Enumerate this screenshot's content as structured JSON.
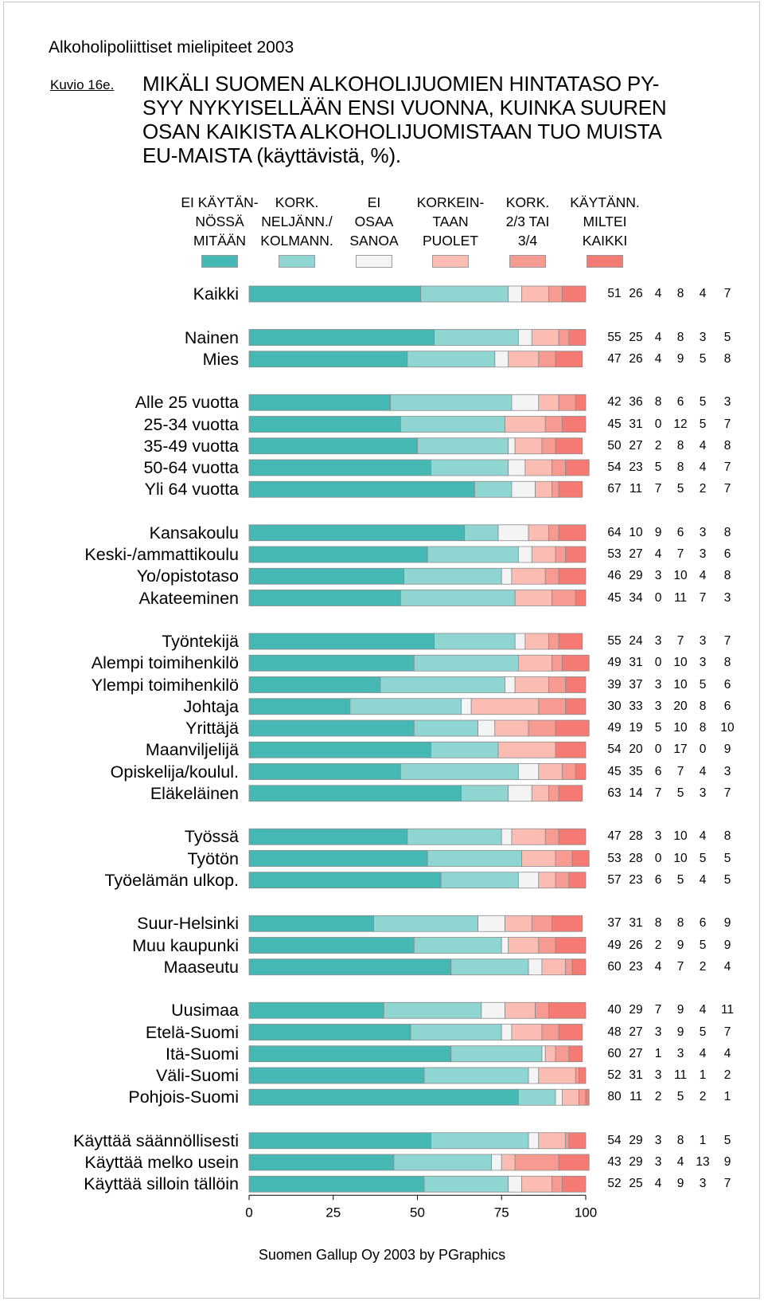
{
  "page": {
    "supertitle": "Alkoholipoliittiset mielipiteet 2003",
    "figure_label": "Kuvio 16e.",
    "title": "MIKÄLI SUOMEN ALKOHOLIJUOMIEN HINTATASO PY-\nSYY NYKYISELLÄÄN ENSI VUONNA, KUINKA SUUREN\nOSAN KAIKISTA ALKOHOLIJUOMISTAAN TUO MUISTA\nEU-MAISTA (käyttävistä, %).",
    "footer": "Suomen Gallup Oy 2003 by PGraphics"
  },
  "colors": {
    "seg": [
      "#45b8b4",
      "#8fd6d2",
      "#f4f4f4",
      "#fbbcb3",
      "#f79a92",
      "#f47a73"
    ],
    "bar_outline": "#8a8a8a"
  },
  "chart_data": {
    "type": "bar",
    "orientation": "horizontal",
    "stacked": true,
    "xlim": [
      0,
      100
    ],
    "x_ticks": [
      "0",
      "25",
      "50",
      "75",
      "100"
    ],
    "legend": [
      {
        "label": "EI KÄYTÄN-\nNÖSSÄ\nMITÄÄN"
      },
      {
        "label": "KORK.\nNELJÄNN./\nKOLMANN."
      },
      {
        "label": "EI\nOSAA\nSANOA"
      },
      {
        "label": "KORKEIN-\nTAAN\nPUOLET"
      },
      {
        "label": "KORK.\n2/3 TAI\n3/4"
      },
      {
        "label": "KÄYTÄNN.\nMILTEI\nKAIKKI"
      }
    ],
    "groups": [
      {
        "rows": [
          {
            "label": "Kaikki",
            "values": [
              51,
              26,
              4,
              8,
              4,
              7
            ]
          }
        ]
      },
      {
        "rows": [
          {
            "label": "Nainen",
            "values": [
              55,
              25,
              4,
              8,
              3,
              5
            ]
          },
          {
            "label": "Mies",
            "values": [
              47,
              26,
              4,
              9,
              5,
              8
            ]
          }
        ]
      },
      {
        "rows": [
          {
            "label": "Alle 25 vuotta",
            "values": [
              42,
              36,
              8,
              6,
              5,
              3
            ]
          },
          {
            "label": "25-34 vuotta",
            "values": [
              45,
              31,
              0,
              12,
              5,
              7
            ]
          },
          {
            "label": "35-49 vuotta",
            "values": [
              50,
              27,
              2,
              8,
              4,
              8
            ]
          },
          {
            "label": "50-64 vuotta",
            "values": [
              54,
              23,
              5,
              8,
              4,
              7
            ]
          },
          {
            "label": "Yli 64 vuotta",
            "values": [
              67,
              11,
              7,
              5,
              2,
              7
            ]
          }
        ]
      },
      {
        "rows": [
          {
            "label": "Kansakoulu",
            "values": [
              64,
              10,
              9,
              6,
              3,
              8
            ]
          },
          {
            "label": "Keski-/ammattikoulu",
            "values": [
              53,
              27,
              4,
              7,
              3,
              6
            ]
          },
          {
            "label": "Yo/opistotaso",
            "values": [
              46,
              29,
              3,
              10,
              4,
              8
            ]
          },
          {
            "label": "Akateeminen",
            "values": [
              45,
              34,
              0,
              11,
              7,
              3
            ]
          }
        ]
      },
      {
        "rows": [
          {
            "label": "Työntekijä",
            "values": [
              55,
              24,
              3,
              7,
              3,
              7
            ]
          },
          {
            "label": "Alempi toimihenkilö",
            "values": [
              49,
              31,
              0,
              10,
              3,
              8
            ]
          },
          {
            "label": "Ylempi toimihenkilö",
            "values": [
              39,
              37,
              3,
              10,
              5,
              6
            ]
          },
          {
            "label": "Johtaja",
            "values": [
              30,
              33,
              3,
              20,
              8,
              6
            ]
          },
          {
            "label": "Yrittäjä",
            "values": [
              49,
              19,
              5,
              10,
              8,
              10
            ]
          },
          {
            "label": "Maanviljelijä",
            "values": [
              54,
              20,
              0,
              17,
              0,
              9
            ]
          },
          {
            "label": "Opiskelija/koulul.",
            "values": [
              45,
              35,
              6,
              7,
              4,
              3
            ]
          },
          {
            "label": "Eläkeläinen",
            "values": [
              63,
              14,
              7,
              5,
              3,
              7
            ]
          }
        ]
      },
      {
        "rows": [
          {
            "label": "Työssä",
            "values": [
              47,
              28,
              3,
              10,
              4,
              8
            ]
          },
          {
            "label": "Työtön",
            "values": [
              53,
              28,
              0,
              10,
              5,
              5
            ]
          },
          {
            "label": "Työelämän ulkop.",
            "values": [
              57,
              23,
              6,
              5,
              4,
              5
            ]
          }
        ]
      },
      {
        "rows": [
          {
            "label": "Suur-Helsinki",
            "values": [
              37,
              31,
              8,
              8,
              6,
              9
            ]
          },
          {
            "label": "Muu kaupunki",
            "values": [
              49,
              26,
              2,
              9,
              5,
              9
            ]
          },
          {
            "label": "Maaseutu",
            "values": [
              60,
              23,
              4,
              7,
              2,
              4
            ]
          }
        ]
      },
      {
        "rows": [
          {
            "label": "Uusimaa",
            "values": [
              40,
              29,
              7,
              9,
              4,
              11
            ]
          },
          {
            "label": "Etelä-Suomi",
            "values": [
              48,
              27,
              3,
              9,
              5,
              7
            ]
          },
          {
            "label": "Itä-Suomi",
            "values": [
              60,
              27,
              1,
              3,
              4,
              4
            ]
          },
          {
            "label": "Väli-Suomi",
            "values": [
              52,
              31,
              3,
              11,
              1,
              2
            ]
          },
          {
            "label": "Pohjois-Suomi",
            "values": [
              80,
              11,
              2,
              5,
              2,
              1
            ]
          }
        ]
      },
      {
        "rows": [
          {
            "label": "Käyttää säännöllisesti",
            "values": [
              54,
              29,
              3,
              8,
              1,
              5
            ]
          },
          {
            "label": "Käyttää melko usein",
            "values": [
              43,
              29,
              3,
              4,
              13,
              9
            ]
          },
          {
            "label": "Käyttää silloin tällöin",
            "values": [
              52,
              25,
              4,
              9,
              3,
              7
            ]
          }
        ]
      }
    ]
  }
}
